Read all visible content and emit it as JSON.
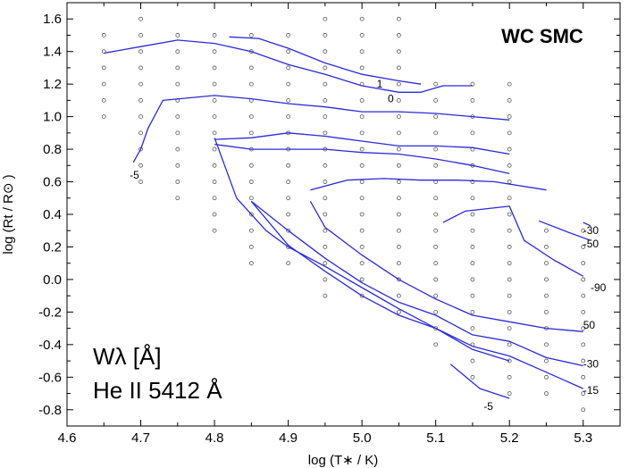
{
  "chart_data": {
    "type": "line",
    "title": "WC SMC",
    "xlabel": "log (T∗ / K)",
    "ylabel": "log (Rt / R⊙ )",
    "xlim": [
      4.6,
      5.35
    ],
    "ylim": [
      -0.9,
      1.7
    ],
    "x_ticks": [
      "4.6",
      "4.7",
      "4.8",
      "4.9",
      "5.0",
      "5.1",
      "5.2",
      "5.3"
    ],
    "y_ticks": [
      "-0.8",
      "-0.6",
      "-0.4",
      "-0.2",
      "0.0",
      "0.2",
      "0.4",
      "0.6",
      "0.8",
      "1.0",
      "1.2",
      "1.4",
      "1.6"
    ],
    "legend_line1": "Wλ [Å]",
    "legend_line2": "He II 5412 Å",
    "grid_points": [
      {
        "x": 4.65,
        "y": [
          1.0,
          1.1,
          1.2,
          1.3,
          1.4,
          1.5
        ]
      },
      {
        "x": 4.7,
        "y": [
          0.6,
          0.7,
          0.8,
          0.9,
          1.0,
          1.1,
          1.2,
          1.3,
          1.4,
          1.5,
          1.6
        ]
      },
      {
        "x": 4.75,
        "y": [
          0.5,
          0.6,
          0.7,
          0.8,
          0.9,
          1.0,
          1.1,
          1.2,
          1.3,
          1.4,
          1.5
        ]
      },
      {
        "x": 4.8,
        "y": [
          0.3,
          0.4,
          0.5,
          0.6,
          0.7,
          0.8,
          0.9,
          1.0,
          1.1,
          1.2,
          1.3,
          1.4,
          1.5
        ]
      },
      {
        "x": 4.85,
        "y": [
          0.1,
          0.2,
          0.3,
          0.4,
          0.5,
          0.6,
          0.7,
          0.8,
          0.9,
          1.0,
          1.1,
          1.2,
          1.3,
          1.4,
          1.5
        ]
      },
      {
        "x": 4.9,
        "y": [
          0.1,
          0.2,
          0.3,
          0.4,
          0.5,
          0.6,
          0.7,
          0.8,
          0.9,
          1.0,
          1.1,
          1.2,
          1.3,
          1.4,
          1.5
        ]
      },
      {
        "x": 4.95,
        "y": [
          -0.1,
          0.0,
          0.1,
          0.2,
          0.3,
          0.4,
          0.5,
          0.6,
          0.7,
          0.8,
          0.9,
          1.0,
          1.1,
          1.2,
          1.3,
          1.4,
          1.5,
          1.6
        ]
      },
      {
        "x": 5.0,
        "y": [
          -0.1,
          0.0,
          0.1,
          0.2,
          0.3,
          0.4,
          0.5,
          0.6,
          0.7,
          0.8,
          0.9,
          1.0,
          1.1,
          1.2,
          1.3,
          1.4,
          1.5,
          1.6
        ]
      },
      {
        "x": 5.05,
        "y": [
          -0.2,
          -0.1,
          0.0,
          0.1,
          0.2,
          0.3,
          0.4,
          0.5,
          0.6,
          0.7,
          0.8,
          0.9,
          1.0,
          1.1,
          1.2,
          1.3,
          1.4,
          1.5,
          1.6
        ]
      },
      {
        "x": 5.1,
        "y": [
          -0.4,
          -0.3,
          -0.2,
          -0.1,
          0.0,
          0.1,
          0.2,
          0.3,
          0.4,
          0.5,
          0.6,
          0.7,
          0.8,
          0.9,
          1.0,
          1.1,
          1.2
        ]
      },
      {
        "x": 5.15,
        "y": [
          -0.6,
          -0.5,
          -0.4,
          -0.3,
          -0.2,
          -0.1,
          0.0,
          0.1,
          0.2,
          0.3,
          0.4,
          0.5,
          0.6,
          0.7,
          0.8,
          0.9,
          1.0,
          1.1,
          1.2
        ]
      },
      {
        "x": 5.2,
        "y": [
          -0.7,
          -0.6,
          -0.5,
          -0.4,
          -0.3,
          -0.2,
          -0.1,
          0.0,
          0.1,
          0.2,
          0.3,
          0.4,
          0.5,
          0.6,
          0.7,
          0.8,
          0.9,
          1.0,
          1.1,
          1.2
        ]
      },
      {
        "x": 5.25,
        "y": [
          -0.7,
          -0.6,
          -0.5,
          -0.4,
          -0.3,
          -0.2,
          -0.1,
          0.0,
          0.1,
          0.2,
          0.3
        ]
      },
      {
        "x": 5.3,
        "y": [
          -0.8,
          -0.7,
          -0.6,
          -0.5,
          -0.4,
          -0.3,
          -0.2,
          -0.1,
          0.0,
          0.1,
          0.2,
          0.3
        ]
      }
    ],
    "series": [
      {
        "label": "1",
        "label_at": [
          5.02,
          1.2
        ],
        "points": [
          [
            4.82,
            1.49
          ],
          [
            4.86,
            1.48
          ],
          [
            4.9,
            1.42
          ],
          [
            4.95,
            1.33
          ],
          [
            5.0,
            1.26
          ],
          [
            5.05,
            1.22
          ],
          [
            5.08,
            1.2
          ]
        ]
      },
      {
        "label": "0",
        "label_at": [
          5.035,
          1.11
        ],
        "points": [
          [
            4.65,
            1.39
          ],
          [
            4.7,
            1.43
          ],
          [
            4.75,
            1.47
          ],
          [
            4.8,
            1.45
          ],
          [
            4.85,
            1.4
          ],
          [
            4.9,
            1.32
          ],
          [
            4.95,
            1.26
          ],
          [
            5.0,
            1.19
          ],
          [
            5.05,
            1.15
          ],
          [
            5.08,
            1.15
          ],
          [
            5.11,
            1.19
          ],
          [
            5.15,
            1.19
          ]
        ]
      },
      {
        "label": "-5",
        "label_at": [
          4.685,
          0.64
        ],
        "points": [
          [
            4.69,
            0.72
          ],
          [
            4.7,
            0.8
          ],
          [
            4.71,
            0.93
          ],
          [
            4.73,
            1.1
          ],
          [
            4.8,
            1.13
          ],
          [
            4.85,
            1.11
          ],
          [
            4.9,
            1.08
          ],
          [
            4.95,
            1.06
          ],
          [
            5.0,
            1.03
          ],
          [
            5.05,
            1.03
          ],
          [
            5.1,
            1.02
          ],
          [
            5.15,
            1.0
          ],
          [
            5.2,
            0.98
          ]
        ]
      },
      {
        "points": [
          [
            4.8,
            0.86
          ],
          [
            4.85,
            0.87
          ],
          [
            4.9,
            0.9
          ],
          [
            4.95,
            0.88
          ],
          [
            5.0,
            0.85
          ],
          [
            5.05,
            0.82
          ],
          [
            5.1,
            0.82
          ],
          [
            5.15,
            0.81
          ],
          [
            5.2,
            0.77
          ]
        ]
      },
      {
        "points": [
          [
            4.8,
            0.83
          ],
          [
            4.85,
            0.8
          ],
          [
            4.9,
            0.8
          ],
          [
            4.95,
            0.8
          ],
          [
            5.0,
            0.78
          ],
          [
            5.05,
            0.77
          ],
          [
            5.1,
            0.74
          ],
          [
            5.15,
            0.7
          ],
          [
            5.2,
            0.65
          ]
        ]
      },
      {
        "points": [
          [
            4.8,
            0.87
          ],
          [
            4.83,
            0.5
          ],
          [
            4.87,
            0.3
          ],
          [
            4.9,
            0.2
          ],
          [
            4.95,
            0.08
          ],
          [
            5.0,
            -0.05
          ],
          [
            5.05,
            -0.18
          ],
          [
            5.1,
            -0.3
          ],
          [
            5.15,
            -0.43
          ],
          [
            5.2,
            -0.5
          ]
        ]
      },
      {
        "points": [
          [
            4.93,
            0.55
          ],
          [
            4.98,
            0.61
          ],
          [
            5.03,
            0.62
          ],
          [
            5.08,
            0.61
          ],
          [
            5.13,
            0.61
          ],
          [
            5.18,
            0.6
          ],
          [
            5.25,
            0.55
          ]
        ]
      },
      {
        "label": "-30",
        "label_at": [
          5.3,
          0.3
        ],
        "points": [
          [
            5.3,
            0.35
          ],
          [
            5.31,
            0.33
          ]
        ]
      },
      {
        "label": "-50",
        "label_at": [
          5.3,
          0.22
        ],
        "points": [
          [
            5.24,
            0.36
          ],
          [
            5.28,
            0.29
          ],
          [
            5.31,
            0.24
          ]
        ]
      },
      {
        "label": "-90",
        "label_at": [
          5.31,
          -0.05
        ],
        "points": [
          [
            5.11,
            0.35
          ],
          [
            5.14,
            0.42
          ],
          [
            5.2,
            0.45
          ],
          [
            5.22,
            0.24
          ],
          [
            5.26,
            0.12
          ],
          [
            5.3,
            0.02
          ]
        ]
      },
      {
        "label": "50",
        "label_at": [
          5.3,
          -0.28
        ],
        "points": [
          [
            4.93,
            0.48
          ],
          [
            4.95,
            0.32
          ],
          [
            5.0,
            0.15
          ],
          [
            5.05,
            0.0
          ],
          [
            5.1,
            -0.12
          ],
          [
            5.15,
            -0.22
          ],
          [
            5.2,
            -0.26
          ],
          [
            5.25,
            -0.3
          ],
          [
            5.3,
            -0.32
          ]
        ]
      },
      {
        "label": "-30",
        "label_at": [
          5.3,
          -0.52
        ],
        "points": [
          [
            4.85,
            0.48
          ],
          [
            4.9,
            0.3
          ],
          [
            4.95,
            0.13
          ],
          [
            5.0,
            -0.02
          ],
          [
            5.05,
            -0.14
          ],
          [
            5.1,
            -0.22
          ],
          [
            5.15,
            -0.34
          ],
          [
            5.2,
            -0.38
          ],
          [
            5.25,
            -0.48
          ],
          [
            5.3,
            -0.53
          ]
        ]
      },
      {
        "label": "-15",
        "label_at": [
          5.3,
          -0.68
        ],
        "points": [
          [
            4.85,
            0.48
          ],
          [
            4.9,
            0.21
          ],
          [
            4.95,
            0.05
          ],
          [
            5.0,
            -0.1
          ],
          [
            5.05,
            -0.22
          ],
          [
            5.1,
            -0.3
          ],
          [
            5.15,
            -0.41
          ],
          [
            5.2,
            -0.47
          ],
          [
            5.25,
            -0.57
          ],
          [
            5.3,
            -0.67
          ]
        ]
      },
      {
        "label": "-5",
        "label_at": [
          5.165,
          -0.78
        ],
        "points": [
          [
            5.12,
            -0.52
          ],
          [
            5.16,
            -0.67
          ],
          [
            5.2,
            -0.73
          ]
        ]
      }
    ]
  }
}
